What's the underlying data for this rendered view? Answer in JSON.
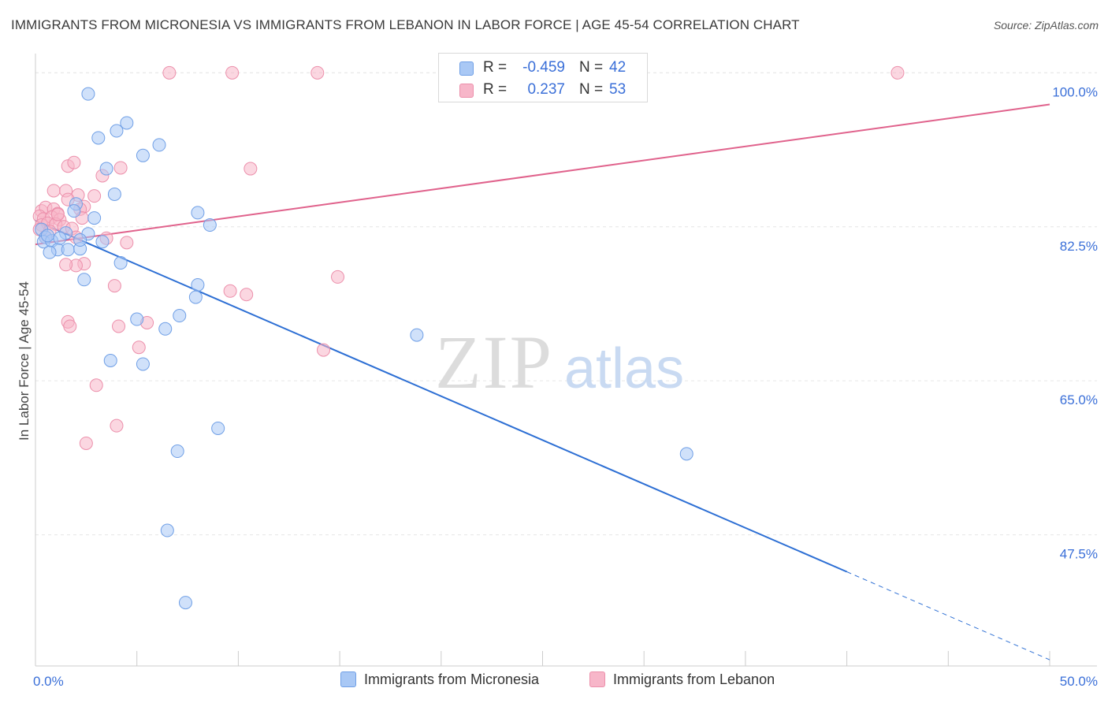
{
  "title": "IMMIGRANTS FROM MICRONESIA VS IMMIGRANTS FROM LEBANON IN LABOR FORCE | AGE 45-54 CORRELATION CHART",
  "source": "Source: ZipAtlas.com",
  "watermark": {
    "zip": "ZIP",
    "atlas": "atlas"
  },
  "legend": {
    "rows": [
      {
        "r_label": "R =",
        "r_value": "-0.459",
        "n_label": "N =",
        "n_value": "42"
      },
      {
        "r_label": "R =",
        "r_value": "0.237",
        "n_label": "N =",
        "n_value": "53"
      }
    ]
  },
  "bottom_legend": {
    "micronesia": "Immigrants from Micronesia",
    "lebanon": "Immigrants from Lebanon"
  },
  "colors": {
    "micronesia_fill": "#a9c8f5",
    "micronesia_stroke": "#6f9fe6",
    "micronesia_line": "#2d6fd4",
    "lebanon_fill": "#f7b6c9",
    "lebanon_stroke": "#ec8fab",
    "lebanon_line": "#e0628c",
    "tick_label": "#3a6fd8",
    "grid": "#e6e6e6"
  },
  "chart_data": {
    "type": "scatter",
    "xlabel": "",
    "ylabel": "In Labor Force | Age 45-54",
    "xlim": [
      0,
      50
    ],
    "ylim": [
      32.6,
      102
    ],
    "x_tick_labels": [
      "0.0%",
      "50.0%"
    ],
    "y_ticks": [
      47.5,
      65.0,
      82.5,
      100.0
    ],
    "y_tick_labels": [
      "47.5%",
      "65.0%",
      "82.5%",
      "100.0%"
    ],
    "series": [
      {
        "name": "Immigrants from Micronesia",
        "R": -0.459,
        "N": 42,
        "points": [
          [
            2.6,
            97.6
          ],
          [
            3.1,
            92.6
          ],
          [
            4.0,
            93.4
          ],
          [
            4.5,
            94.3
          ],
          [
            5.3,
            90.6
          ],
          [
            6.1,
            91.8
          ],
          [
            3.5,
            89.1
          ],
          [
            3.9,
            86.2
          ],
          [
            2.0,
            85.1
          ],
          [
            1.9,
            84.3
          ],
          [
            2.9,
            83.5
          ],
          [
            8.0,
            84.1
          ],
          [
            8.6,
            82.7
          ],
          [
            0.3,
            82.2
          ],
          [
            0.5,
            81.3
          ],
          [
            1.5,
            81.8
          ],
          [
            2.6,
            81.7
          ],
          [
            0.4,
            80.8
          ],
          [
            3.3,
            80.8
          ],
          [
            0.8,
            80.9
          ],
          [
            1.1,
            79.9
          ],
          [
            1.6,
            79.9
          ],
          [
            0.7,
            79.6
          ],
          [
            2.2,
            80.0
          ],
          [
            4.2,
            78.4
          ],
          [
            2.4,
            76.5
          ],
          [
            8.0,
            75.9
          ],
          [
            7.9,
            74.5
          ],
          [
            5.0,
            72.0
          ],
          [
            7.1,
            72.4
          ],
          [
            6.4,
            70.9
          ],
          [
            18.8,
            70.2
          ],
          [
            3.7,
            67.3
          ],
          [
            5.3,
            66.9
          ],
          [
            9.0,
            59.6
          ],
          [
            7.0,
            57.0
          ],
          [
            32.1,
            56.7
          ],
          [
            6.5,
            48.0
          ],
          [
            7.4,
            39.8
          ],
          [
            1.2,
            81.2
          ],
          [
            0.6,
            81.5
          ],
          [
            2.2,
            81.0
          ]
        ],
        "trend": {
          "x": [
            0,
            40
          ],
          "y": [
            83.2,
            43.3
          ],
          "dashed_to": [
            50,
            33.3
          ]
        }
      },
      {
        "name": "Immigrants from Lebanon",
        "R": 0.237,
        "N": 53,
        "points": [
          [
            6.6,
            100.0
          ],
          [
            9.7,
            100.0
          ],
          [
            13.9,
            100.0
          ],
          [
            42.5,
            100.0
          ],
          [
            1.6,
            89.4
          ],
          [
            1.9,
            89.8
          ],
          [
            4.2,
            89.2
          ],
          [
            10.6,
            89.1
          ],
          [
            3.3,
            88.3
          ],
          [
            0.9,
            86.6
          ],
          [
            1.5,
            86.6
          ],
          [
            2.1,
            86.1
          ],
          [
            2.9,
            86.0
          ],
          [
            1.6,
            85.6
          ],
          [
            2.4,
            84.8
          ],
          [
            0.3,
            84.3
          ],
          [
            0.5,
            84.7
          ],
          [
            0.9,
            84.5
          ],
          [
            0.2,
            83.7
          ],
          [
            1.1,
            84.0
          ],
          [
            2.2,
            84.5
          ],
          [
            0.4,
            83.4
          ],
          [
            0.8,
            83.6
          ],
          [
            1.2,
            83.3
          ],
          [
            0.3,
            82.7
          ],
          [
            0.6,
            82.9
          ],
          [
            1.0,
            82.8
          ],
          [
            1.4,
            82.5
          ],
          [
            0.2,
            82.2
          ],
          [
            1.8,
            82.3
          ],
          [
            2.3,
            83.5
          ],
          [
            0.5,
            81.3
          ],
          [
            2.0,
            81.3
          ],
          [
            3.5,
            81.2
          ],
          [
            4.5,
            80.7
          ],
          [
            2.4,
            78.3
          ],
          [
            2.0,
            78.1
          ],
          [
            1.5,
            78.2
          ],
          [
            14.9,
            76.8
          ],
          [
            9.6,
            75.2
          ],
          [
            10.4,
            74.8
          ],
          [
            3.9,
            75.8
          ],
          [
            5.5,
            71.6
          ],
          [
            1.6,
            71.7
          ],
          [
            1.7,
            71.2
          ],
          [
            4.1,
            71.2
          ],
          [
            5.1,
            68.8
          ],
          [
            14.2,
            68.5
          ],
          [
            3.0,
            64.5
          ],
          [
            4.0,
            59.9
          ],
          [
            2.5,
            57.9
          ],
          [
            1.1,
            83.9
          ],
          [
            0.7,
            82.0
          ]
        ],
        "trend": {
          "x": [
            0,
            50
          ],
          "y": [
            80.5,
            96.4
          ]
        }
      }
    ]
  }
}
